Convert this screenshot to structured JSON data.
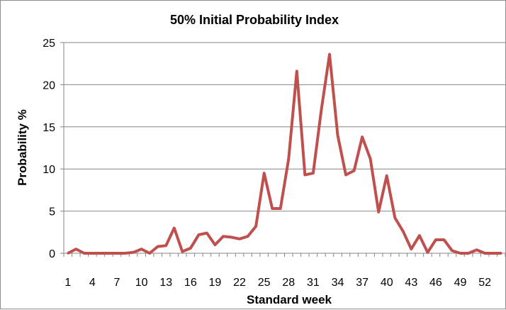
{
  "chart_data": {
    "type": "line",
    "title": "50% Initial Probability Index",
    "xlabel": "Standard week",
    "ylabel": "Probability %",
    "x": [
      1,
      2,
      3,
      4,
      5,
      6,
      7,
      8,
      9,
      10,
      11,
      12,
      13,
      14,
      15,
      16,
      17,
      18,
      19,
      20,
      21,
      22,
      23,
      24,
      25,
      26,
      27,
      28,
      29,
      30,
      31,
      32,
      33,
      34,
      35,
      36,
      37,
      38,
      39,
      40,
      41,
      42,
      43,
      44,
      45,
      46,
      47,
      48,
      49,
      50,
      51,
      52,
      53,
      54
    ],
    "x_tick_labels": [
      "1",
      "4",
      "7",
      "10",
      "13",
      "16",
      "19",
      "22",
      "25",
      "28",
      "31",
      "34",
      "37",
      "40",
      "43",
      "46",
      "49",
      "52"
    ],
    "y_ticks": [
      0,
      5,
      10,
      15,
      20,
      25
    ],
    "ylim": [
      0,
      25
    ],
    "grid": "horizontal",
    "series": [
      {
        "color": "#c0504d",
        "values": [
          0,
          0.5,
          0,
          0,
          0,
          0,
          0,
          0,
          0.1,
          0.5,
          0,
          0.8,
          0.9,
          3.0,
          0.2,
          0.6,
          2.2,
          2.4,
          1.0,
          2.0,
          1.9,
          1.7,
          2.0,
          3.2,
          9.5,
          5.3,
          5.3,
          11.2,
          21.6,
          9.3,
          9.5,
          17.0,
          23.6,
          14.0,
          9.3,
          9.8,
          13.8,
          11.2,
          4.9,
          9.2,
          4.2,
          2.6,
          0.5,
          2.1,
          0.1,
          1.6,
          1.6,
          0.3,
          0,
          0,
          0.4,
          0,
          0,
          0
        ]
      }
    ]
  }
}
